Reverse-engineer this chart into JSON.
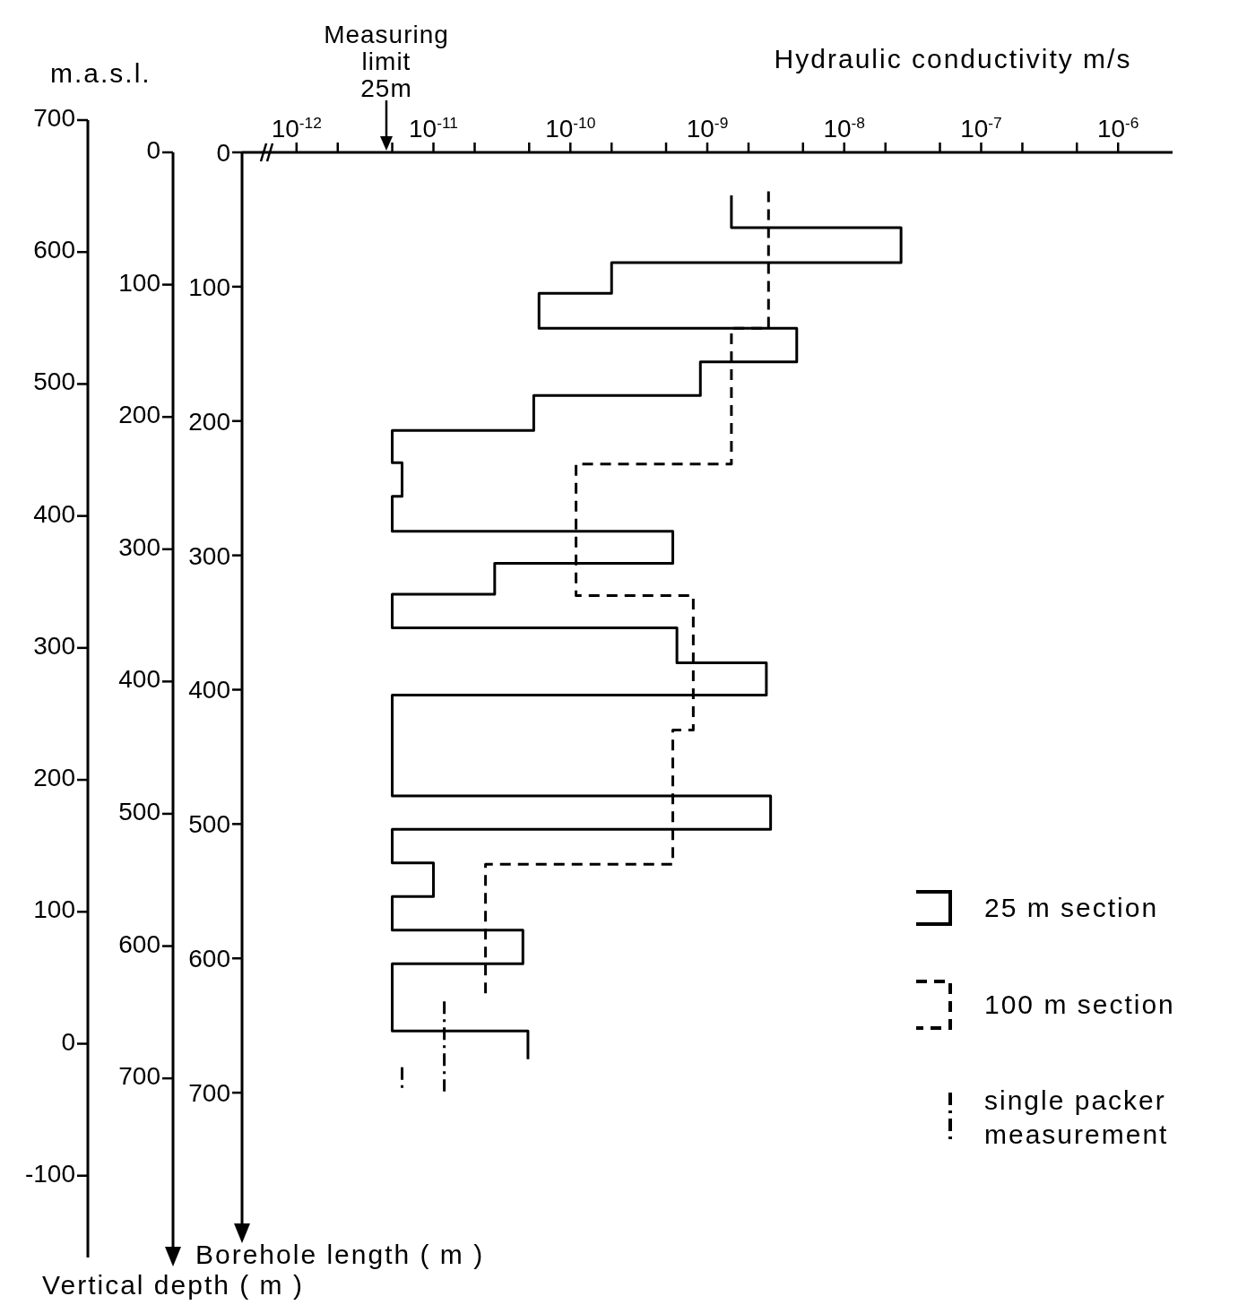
{
  "chart_data": {
    "type": "line",
    "xlabel": "Hydraulic conductivity m/s",
    "ylabel": "Borehole length ( m )",
    "y2label": "Vertical depth ( m )",
    "y3label": "m.a.s.l.",
    "log": "x",
    "xlim": [
      4e-13,
      2.5e-06
    ],
    "xticks": [
      {
        "value": 1e-12,
        "label": "10$^{-12}$"
      },
      {
        "value": 2e-12,
        "label": null
      },
      {
        "value": 5e-12,
        "label": null
      },
      {
        "value": 1e-11,
        "label": "10$^{-11}$"
      },
      {
        "value": 2e-11,
        "label": null
      },
      {
        "value": 5e-11,
        "label": null
      },
      {
        "value": 1e-10,
        "label": "10$^{-10}$"
      },
      {
        "value": 2e-10,
        "label": null
      },
      {
        "value": 5e-10,
        "label": null
      },
      {
        "value": 1e-09,
        "label": "10$^{-9}$"
      },
      {
        "value": 2e-09,
        "label": null
      },
      {
        "value": 5e-09,
        "label": null
      },
      {
        "value": 1e-08,
        "label": "10$^{-8}$"
      },
      {
        "value": 2e-08,
        "label": null
      },
      {
        "value": 5e-08,
        "label": null
      },
      {
        "value": 1e-07,
        "label": "10$^{-7}$"
      },
      {
        "value": 2e-07,
        "label": null
      },
      {
        "value": 5e-07,
        "label": null
      },
      {
        "value": 1e-06,
        "label": "10$^{-6}$"
      }
    ],
    "ylim": [
      800,
      0
    ],
    "yticks": [
      0,
      100,
      200,
      300,
      400,
      500,
      600,
      700
    ],
    "y2lim": [
      830,
      0
    ],
    "y2ticks": [
      0,
      100,
      200,
      300,
      400,
      500,
      600,
      700
    ],
    "y3lim": [
      -162,
      700
    ],
    "y3ticks": [
      700,
      600,
      500,
      400,
      300,
      200,
      100,
      0,
      -100
    ],
    "grid": false,
    "legend": "bottom right",
    "marker": "none",
    "annotations": [
      "Measuring limit 25m"
    ],
    "series": [
      {
        "name": "25 m section",
        "color": "#000000",
        "line_style": "solid",
        "x": [
          1.5e-09,
          1.5e-09,
          2.6e-08,
          2.6e-08,
          2e-10,
          2e-10,
          5.9e-11,
          5.9e-11,
          4.5e-09,
          4.5e-09,
          8.9e-10,
          8.9e-10,
          5.4e-11,
          5.4e-11,
          5e-12,
          5e-12,
          5.9e-12,
          5.9e-12,
          5e-12,
          5e-12,
          5.6e-10,
          5.6e-10,
          2.8e-11,
          2.8e-11,
          5e-12,
          5e-12,
          6e-10,
          6e-10,
          2.7e-09,
          2.7e-09,
          5e-12,
          5e-12,
          2.9e-09,
          2.9e-09,
          5e-12,
          5e-12,
          1e-11,
          1e-11,
          5e-12,
          5e-12,
          4.5e-11,
          4.5e-11,
          5e-12,
          5e-12,
          4.9e-11,
          4.9e-11
        ],
        "values": [
          32,
          56,
          56,
          82,
          82,
          105,
          105,
          131,
          131,
          156,
          156,
          181,
          181,
          207,
          207,
          231,
          231,
          256,
          256,
          282,
          282,
          306,
          306,
          329,
          329,
          354,
          354,
          380,
          380,
          404,
          404,
          479,
          479,
          504,
          504,
          529,
          529,
          554,
          554,
          579,
          579,
          604,
          604,
          654,
          654,
          675
        ]
      },
      {
        "name": "100 m section",
        "color": "#000000",
        "line_style": "dashed",
        "x": [
          2.8e-09,
          2.8e-09,
          1.5e-09,
          1.5e-09,
          1.1e-10,
          1.1e-10,
          7.9e-10,
          7.9e-10,
          5.6e-10,
          5.6e-10,
          2.4e-11,
          2.4e-11
        ],
        "values": [
          29,
          131,
          131,
          232,
          232,
          330,
          330,
          430,
          430,
          530,
          530,
          629
        ]
      },
      {
        "name": "single packer measurement",
        "color": "#000000",
        "line_style": "dotted",
        "x": [
          1.2e-11,
          1.2e-11
        ],
        "values": [
          632,
          699
        ]
      },
      {
        "color": "#000000",
        "line_style": "dotted",
        "x": [
          5.9e-12,
          5.9e-12
        ],
        "values": [
          681,
          699
        ]
      }
    ]
  }
}
